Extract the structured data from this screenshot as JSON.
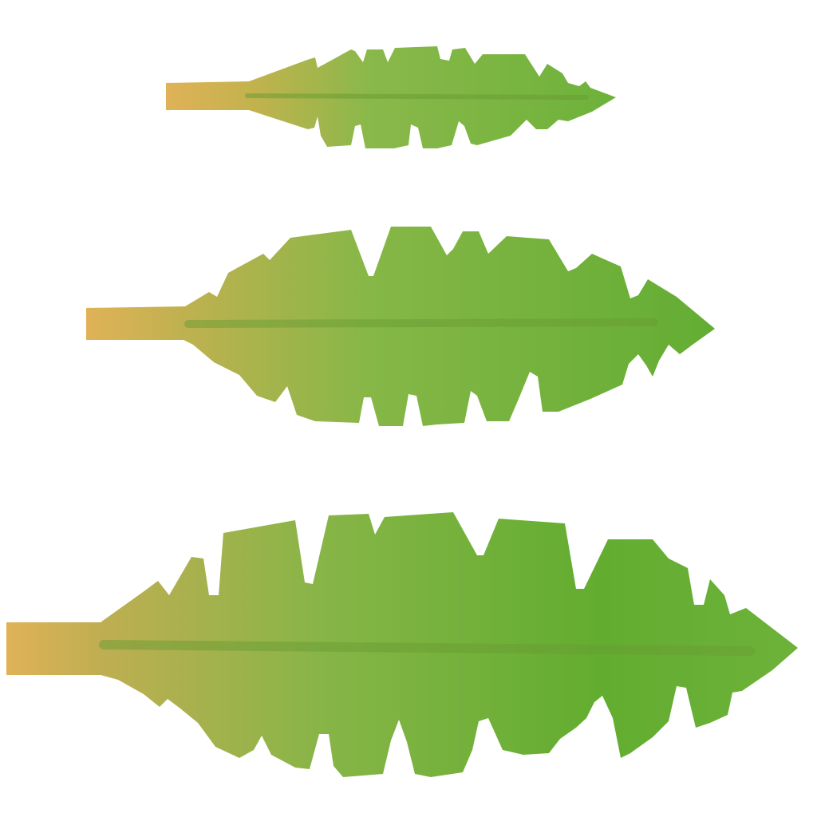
{
  "scene": {
    "description_free": true,
    "background_color": "#ffffff",
    "palette": {
      "stem": "#e0b257",
      "leaf_light": "#8ab84a",
      "leaf_mid": "#79b43c",
      "leaf_dark": "#5fa631",
      "vein": "#6a9c33",
      "edge_tint": "#c99a58"
    },
    "sprites": [
      {
        "id": "small",
        "kind": "dandelion-leaf-small-sprite"
      },
      {
        "id": "medium",
        "kind": "dandelion-leaf-medium-sprite"
      },
      {
        "id": "large",
        "kind": "dandelion-leaf-large-sprite"
      }
    ]
  }
}
